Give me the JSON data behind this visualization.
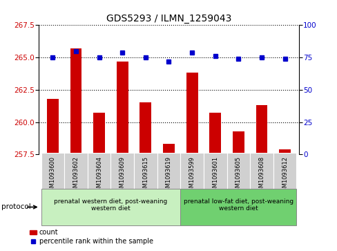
{
  "title": "GDS5293 / ILMN_1259043",
  "samples": [
    "GSM1093600",
    "GSM1093602",
    "GSM1093604",
    "GSM1093609",
    "GSM1093615",
    "GSM1093619",
    "GSM1093599",
    "GSM1093601",
    "GSM1093605",
    "GSM1093608",
    "GSM1093612"
  ],
  "counts": [
    261.8,
    265.7,
    260.7,
    264.7,
    261.5,
    258.3,
    263.8,
    260.7,
    259.3,
    261.3,
    257.9
  ],
  "percentiles": [
    75,
    80,
    75,
    79,
    75,
    72,
    79,
    76,
    74,
    75,
    74
  ],
  "ylim_left": [
    257.5,
    267.5
  ],
  "ylim_right": [
    0,
    100
  ],
  "yticks_left": [
    257.5,
    260.0,
    262.5,
    265.0,
    267.5
  ],
  "yticks_right": [
    0,
    25,
    50,
    75,
    100
  ],
  "bar_color": "#cc0000",
  "dot_color": "#0000cc",
  "group1_label": "prenatal western diet, post-weaning\nwestern diet",
  "group2_label": "prenatal low-fat diet, post-weaning\nwestern diet",
  "group1_indices": [
    0,
    1,
    2,
    3,
    4,
    5
  ],
  "group2_indices": [
    6,
    7,
    8,
    9,
    10
  ],
  "protocol_label": "protocol",
  "legend_count_label": "count",
  "legend_pct_label": "percentile rank within the sample",
  "bar_width": 0.5,
  "label_fontsize": 7,
  "tick_fontsize": 7.5
}
